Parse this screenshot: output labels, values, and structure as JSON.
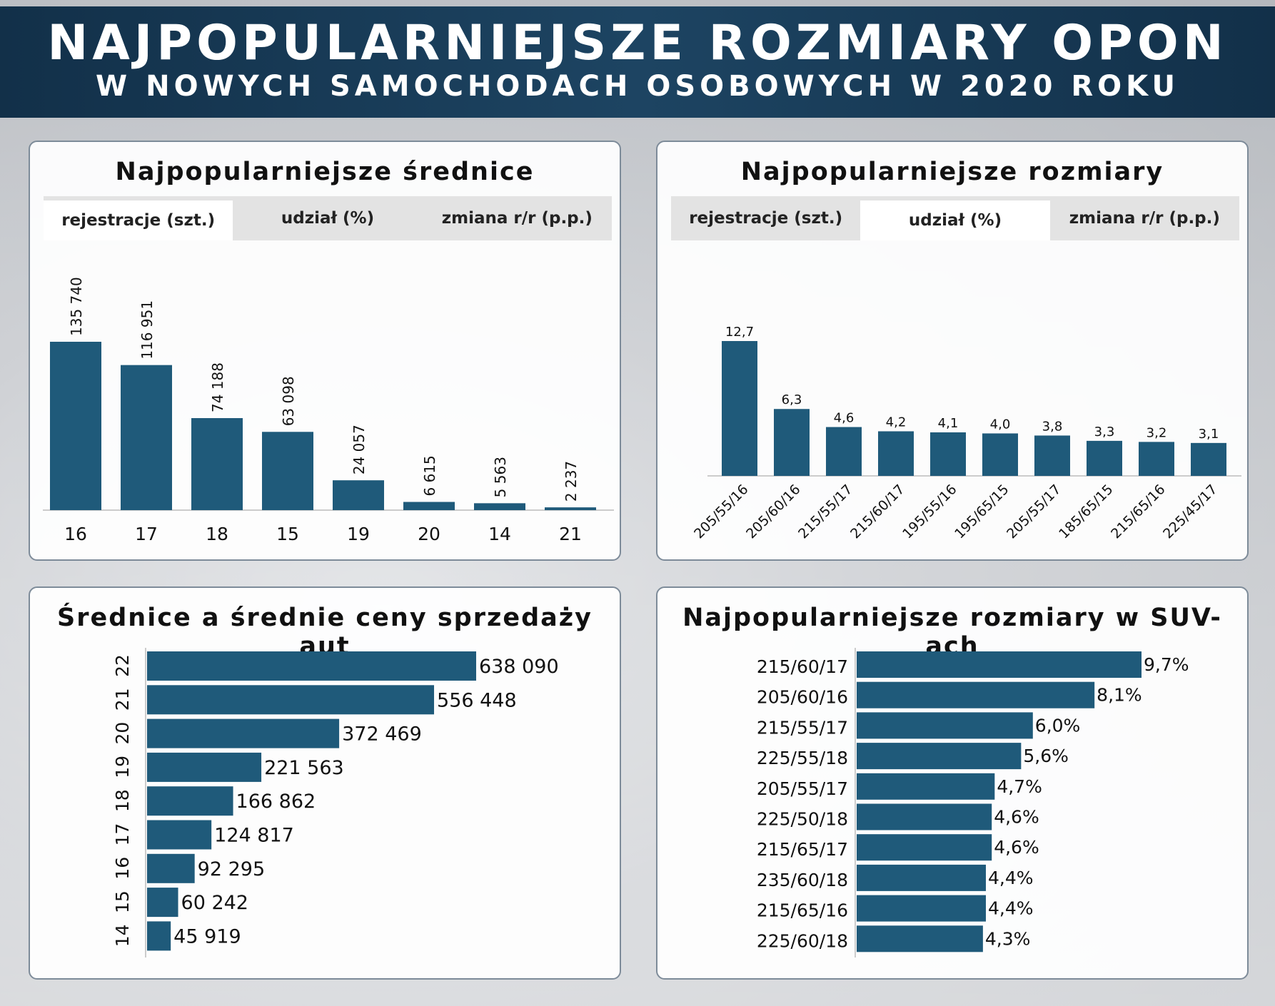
{
  "header": {
    "title": "NAJPOPULARNIEJSZE ROZMIARY OPON",
    "subtitle": "W NOWYCH SAMOCHODACH OSOBOWYCH W 2020 ROKU"
  },
  "colors": {
    "bar": "#1f5a7a",
    "header": "#1a3a55"
  },
  "panels": [
    {
      "title": "Najpopularniejsze średnice",
      "tabs": [
        "rejestracje (szt.)",
        "udział (%)",
        "zmiana r/r (p.p.)"
      ],
      "active_tab": 0
    },
    {
      "title": "Najpopularniejsze rozmiary",
      "tabs": [
        "rejestracje (szt.)",
        "udział (%)",
        "zmiana r/r (p.p.)"
      ],
      "active_tab": 1
    },
    {
      "title": "Średnice a średnie ceny sprzedaży aut"
    },
    {
      "title": "Najpopularniejsze rozmiary w SUV-ach"
    }
  ],
  "chart_data": [
    {
      "type": "bar",
      "categories": [
        "16",
        "17",
        "18",
        "15",
        "19",
        "20",
        "14",
        "21"
      ],
      "values": [
        135740,
        116951,
        74188,
        63098,
        24057,
        6615,
        5563,
        2237
      ],
      "labels": [
        "135 740",
        "116 951",
        "74 188",
        "63 098",
        "24 057",
        "6 615",
        "5 563",
        "2 237"
      ]
    },
    {
      "type": "bar",
      "categories": [
        "205/55/16",
        "205/60/16",
        "215/55/17",
        "215/60/17",
        "195/55/16",
        "195/65/15",
        "205/55/17",
        "185/65/15",
        "215/65/16",
        "225/45/17"
      ],
      "values": [
        12.7,
        6.3,
        4.6,
        4.2,
        4.1,
        4.0,
        3.8,
        3.3,
        3.2,
        3.1
      ],
      "labels": [
        "12,7",
        "6,3",
        "4,6",
        "4,2",
        "4,1",
        "4,0",
        "3,8",
        "3,3",
        "3,2",
        "3,1"
      ]
    },
    {
      "type": "bar",
      "orientation": "horizontal",
      "categories": [
        "22",
        "21",
        "20",
        "19",
        "18",
        "17",
        "16",
        "15",
        "14"
      ],
      "values": [
        638090,
        556448,
        372469,
        221563,
        166862,
        124817,
        92295,
        60242,
        45919
      ],
      "labels": [
        "638 090",
        "556 448",
        "372 469",
        "221 563",
        "166 862",
        "124 817",
        "92 295",
        "60 242",
        "45 919"
      ]
    },
    {
      "type": "bar",
      "orientation": "horizontal",
      "categories": [
        "215/60/17",
        "205/60/16",
        "215/55/17",
        "225/55/18",
        "205/55/17",
        "225/50/18",
        "215/65/17",
        "235/60/18",
        "215/65/16",
        "225/60/18"
      ],
      "values": [
        9.7,
        8.1,
        6.0,
        5.6,
        4.7,
        4.6,
        4.6,
        4.4,
        4.4,
        4.3
      ],
      "labels": [
        "9,7%",
        "8,1%",
        "6,0%",
        "5,6%",
        "4,7%",
        "4,6%",
        "4,6%",
        "4,4%",
        "4,4%",
        "4,3%"
      ]
    }
  ]
}
